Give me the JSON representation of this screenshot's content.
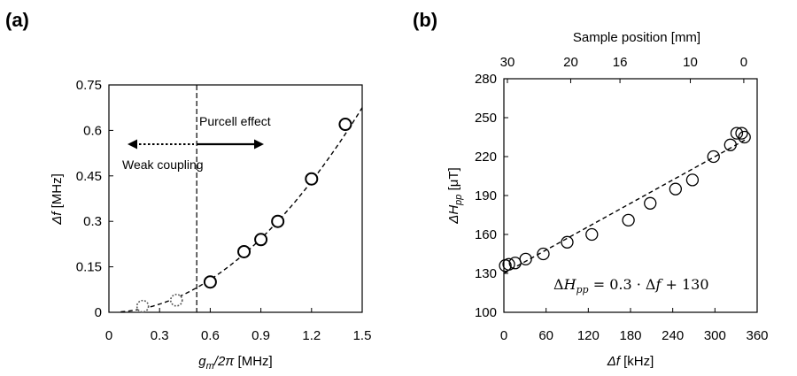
{
  "chart_data": [
    {
      "panel_label": "(a)",
      "type": "scatter",
      "xlabel": "g_m/2π [MHz]",
      "ylabel": "Δf [MHz]",
      "xlim": [
        0,
        1.5
      ],
      "ylim": [
        0,
        0.75
      ],
      "xticks": [
        "0",
        "0.3",
        "0.6",
        "0.9",
        "1.2",
        "1.5"
      ],
      "yticks": [
        "0",
        "0.15",
        "0.3",
        "0.45",
        "0.6",
        "0.75"
      ],
      "series": [
        {
          "style": "dotted-circles",
          "x": [
            0.2,
            0.4
          ],
          "y": [
            0.02,
            0.04
          ]
        },
        {
          "style": "solid-circles",
          "x": [
            0.6,
            0.8,
            0.9,
            1.0,
            1.2,
            1.4
          ],
          "y": [
            0.1,
            0.2,
            0.24,
            0.3,
            0.44,
            0.62
          ]
        }
      ],
      "fit": {
        "style": "dashed",
        "form": "quadratic",
        "coef": 0.3,
        "xrange": [
          0.07,
          1.5
        ]
      },
      "vline": {
        "x": 0.52,
        "style": "dashed"
      },
      "annotations": {
        "purcell": "Purcell effect",
        "weak": "Weak coupling"
      },
      "grid": false
    },
    {
      "panel_label": "(b)",
      "type": "scatter",
      "xlabel": "Δf [kHz]",
      "ylabel": "ΔH_pp [μT]",
      "top_xlabel": "Sample position [mm]",
      "xlim": [
        0,
        360
      ],
      "ylim": [
        100,
        280
      ],
      "xticks": [
        "0",
        "60",
        "120",
        "180",
        "240",
        "300",
        "360"
      ],
      "yticks": [
        "100",
        "130",
        "160",
        "190",
        "220",
        "250",
        "280"
      ],
      "top_ticks": [
        {
          "label": "30",
          "x": 5
        },
        {
          "label": "20",
          "x": 95
        },
        {
          "label": "16",
          "x": 165
        },
        {
          "label": "10",
          "x": 265
        },
        {
          "label": "0",
          "x": 341
        }
      ],
      "series": [
        {
          "style": "open-circles",
          "x": [
            2,
            7,
            16,
            31,
            56,
            90,
            125,
            177,
            208,
            244,
            268,
            298,
            322,
            331,
            338,
            342
          ],
          "y": [
            136,
            137,
            138,
            141,
            145,
            154,
            160,
            171,
            184,
            195,
            202,
            220,
            229,
            238,
            238,
            235
          ]
        }
      ],
      "fit": {
        "style": "dashed",
        "slope": 0.3,
        "intercept": 130,
        "xrange": [
          0,
          345
        ]
      },
      "equation": "ΔH_pp = 0.3 · Δf + 130",
      "grid": false
    }
  ]
}
